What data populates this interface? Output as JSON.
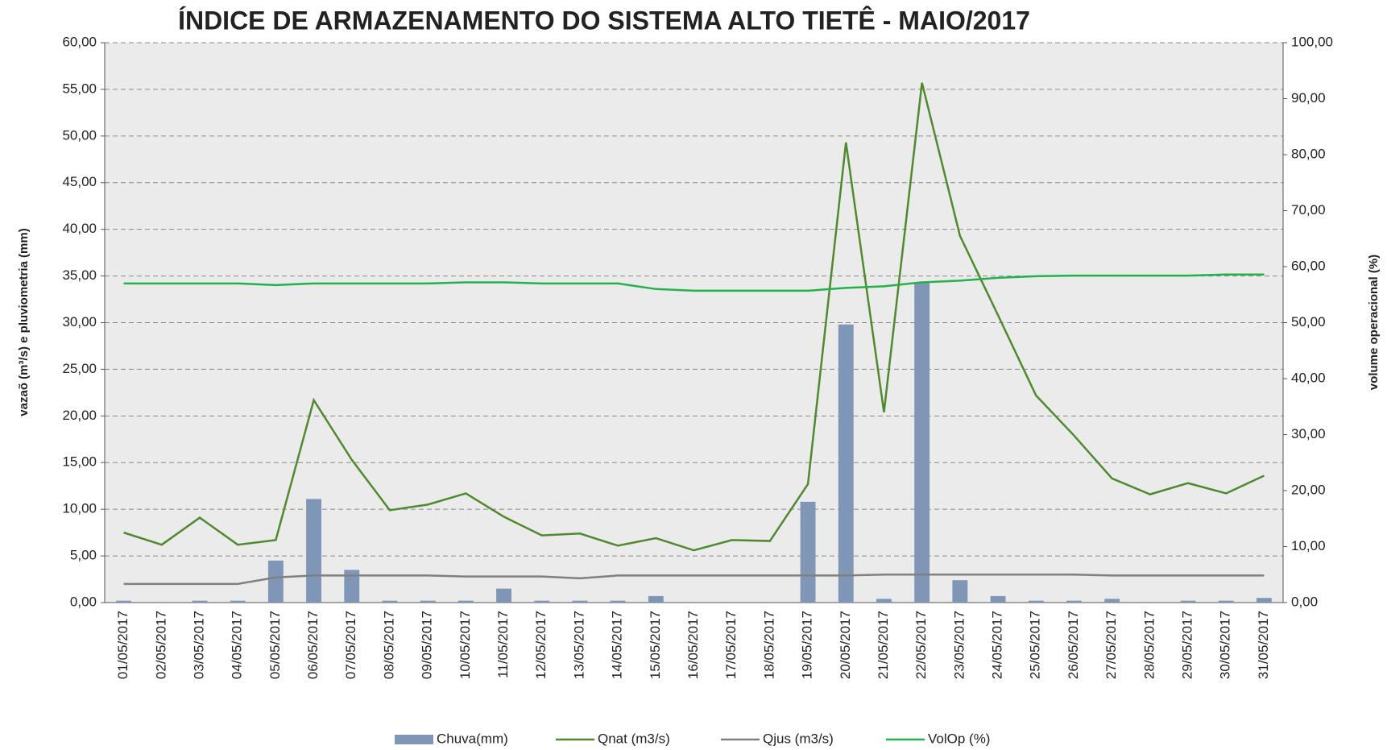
{
  "chart_data": {
    "type": "bar-line-combo",
    "title": "ÍNDICE DE ARMAZENAMENTO  DO SISTEMA ALTO TIETÊ - MAIO/2017",
    "y_label": "vazaõ (m³/s) e pluviometria (mm)",
    "y2_label": "volume operacional (%)",
    "categories": [
      "01/05/2017",
      "02/05/2017",
      "03/05/2017",
      "04/05/2017",
      "05/05/2017",
      "06/05/2017",
      "07/05/2017",
      "08/05/2017",
      "09/05/2017",
      "10/05/2017",
      "11/05/2017",
      "12/05/2017",
      "13/05/2017",
      "14/05/2017",
      "15/05/2017",
      "16/05/2017",
      "17/05/2017",
      "18/05/2017",
      "19/05/2017",
      "20/05/2017",
      "21/05/2017",
      "22/05/2017",
      "23/05/2017",
      "24/05/2017",
      "25/05/2017",
      "26/05/2017",
      "27/05/2017",
      "28/05/2017",
      "29/05/2017",
      "30/05/2017",
      "31/05/2017"
    ],
    "series": [
      {
        "name": "Chuva(mm)",
        "kind": "bar",
        "color": "#8096b6",
        "values": [
          0.2,
          0,
          0.2,
          0.2,
          4.5,
          11.1,
          3.5,
          0.2,
          0.2,
          0.2,
          1.5,
          0.2,
          0.2,
          0.2,
          0.7,
          0,
          0,
          0,
          10.8,
          29.8,
          0.4,
          34.3,
          2.4,
          0.7,
          0.2,
          0.2,
          0.4,
          0,
          0.2,
          0.2,
          0.5
        ]
      },
      {
        "name": "Qnat (m3/s)",
        "kind": "line",
        "color": "#4e8a2e",
        "values": [
          7.5,
          6.2,
          9.1,
          6.2,
          6.7,
          21.7,
          15.3,
          9.9,
          10.5,
          11.7,
          9.2,
          7.2,
          7.4,
          6.1,
          6.9,
          5.6,
          6.7,
          6.6,
          12.7,
          49.3,
          20.4,
          55.7,
          39.3,
          30.8,
          22.2,
          17.9,
          13.3,
          11.6,
          12.8,
          11.7,
          13.6
        ]
      },
      {
        "name": "Qjus (m3/s)",
        "kind": "line",
        "color": "#808080",
        "values": [
          2.0,
          2.0,
          2.0,
          2.0,
          2.7,
          2.9,
          2.9,
          2.9,
          2.9,
          2.8,
          2.8,
          2.8,
          2.6,
          2.9,
          2.9,
          2.9,
          2.9,
          2.9,
          2.9,
          2.9,
          3.0,
          3.0,
          3.0,
          3.0,
          3.0,
          3.0,
          2.9,
          2.9,
          2.9,
          2.9,
          2.9
        ]
      },
      {
        "name": "VolOp (%)",
        "kind": "line",
        "axis": "y2",
        "color": "#22b14c",
        "values": [
          57.0,
          57.0,
          57.0,
          57.0,
          56.7,
          57.0,
          57.0,
          57.0,
          57.0,
          57.2,
          57.2,
          57.0,
          57.0,
          57.0,
          56.0,
          55.7,
          55.7,
          55.7,
          55.7,
          56.2,
          56.5,
          57.2,
          57.5,
          58.0,
          58.3,
          58.4,
          58.4,
          58.4,
          58.4,
          58.6,
          58.6
        ]
      }
    ],
    "ylim": [
      0,
      60
    ],
    "yticks": [
      {
        "value": 0,
        "label": "0,00"
      },
      {
        "value": 5,
        "label": "5,00"
      },
      {
        "value": 10,
        "label": "10,00"
      },
      {
        "value": 15,
        "label": "15,00"
      },
      {
        "value": 20,
        "label": "20,00"
      },
      {
        "value": 25,
        "label": "25,00"
      },
      {
        "value": 30,
        "label": "30,00"
      },
      {
        "value": 35,
        "label": "35,00"
      },
      {
        "value": 40,
        "label": "40,00"
      },
      {
        "value": 45,
        "label": "45,00"
      },
      {
        "value": 50,
        "label": "50,00"
      },
      {
        "value": 55,
        "label": "55,00"
      },
      {
        "value": 60,
        "label": "60,00"
      }
    ],
    "y2lim": [
      0,
      100
    ],
    "y2ticks": [
      {
        "value": 0,
        "label": "0,00"
      },
      {
        "value": 10,
        "label": "10,00"
      },
      {
        "value": 20,
        "label": "20,00"
      },
      {
        "value": 30,
        "label": "30,00"
      },
      {
        "value": 40,
        "label": "40,00"
      },
      {
        "value": 50,
        "label": "50,00"
      },
      {
        "value": 60,
        "label": "60,00"
      },
      {
        "value": 70,
        "label": "70,00"
      },
      {
        "value": 80,
        "label": "80,00"
      },
      {
        "value": 90,
        "label": "90,00"
      },
      {
        "value": 100,
        "label": "100,00"
      }
    ],
    "grid": true,
    "legend": "bottom"
  }
}
